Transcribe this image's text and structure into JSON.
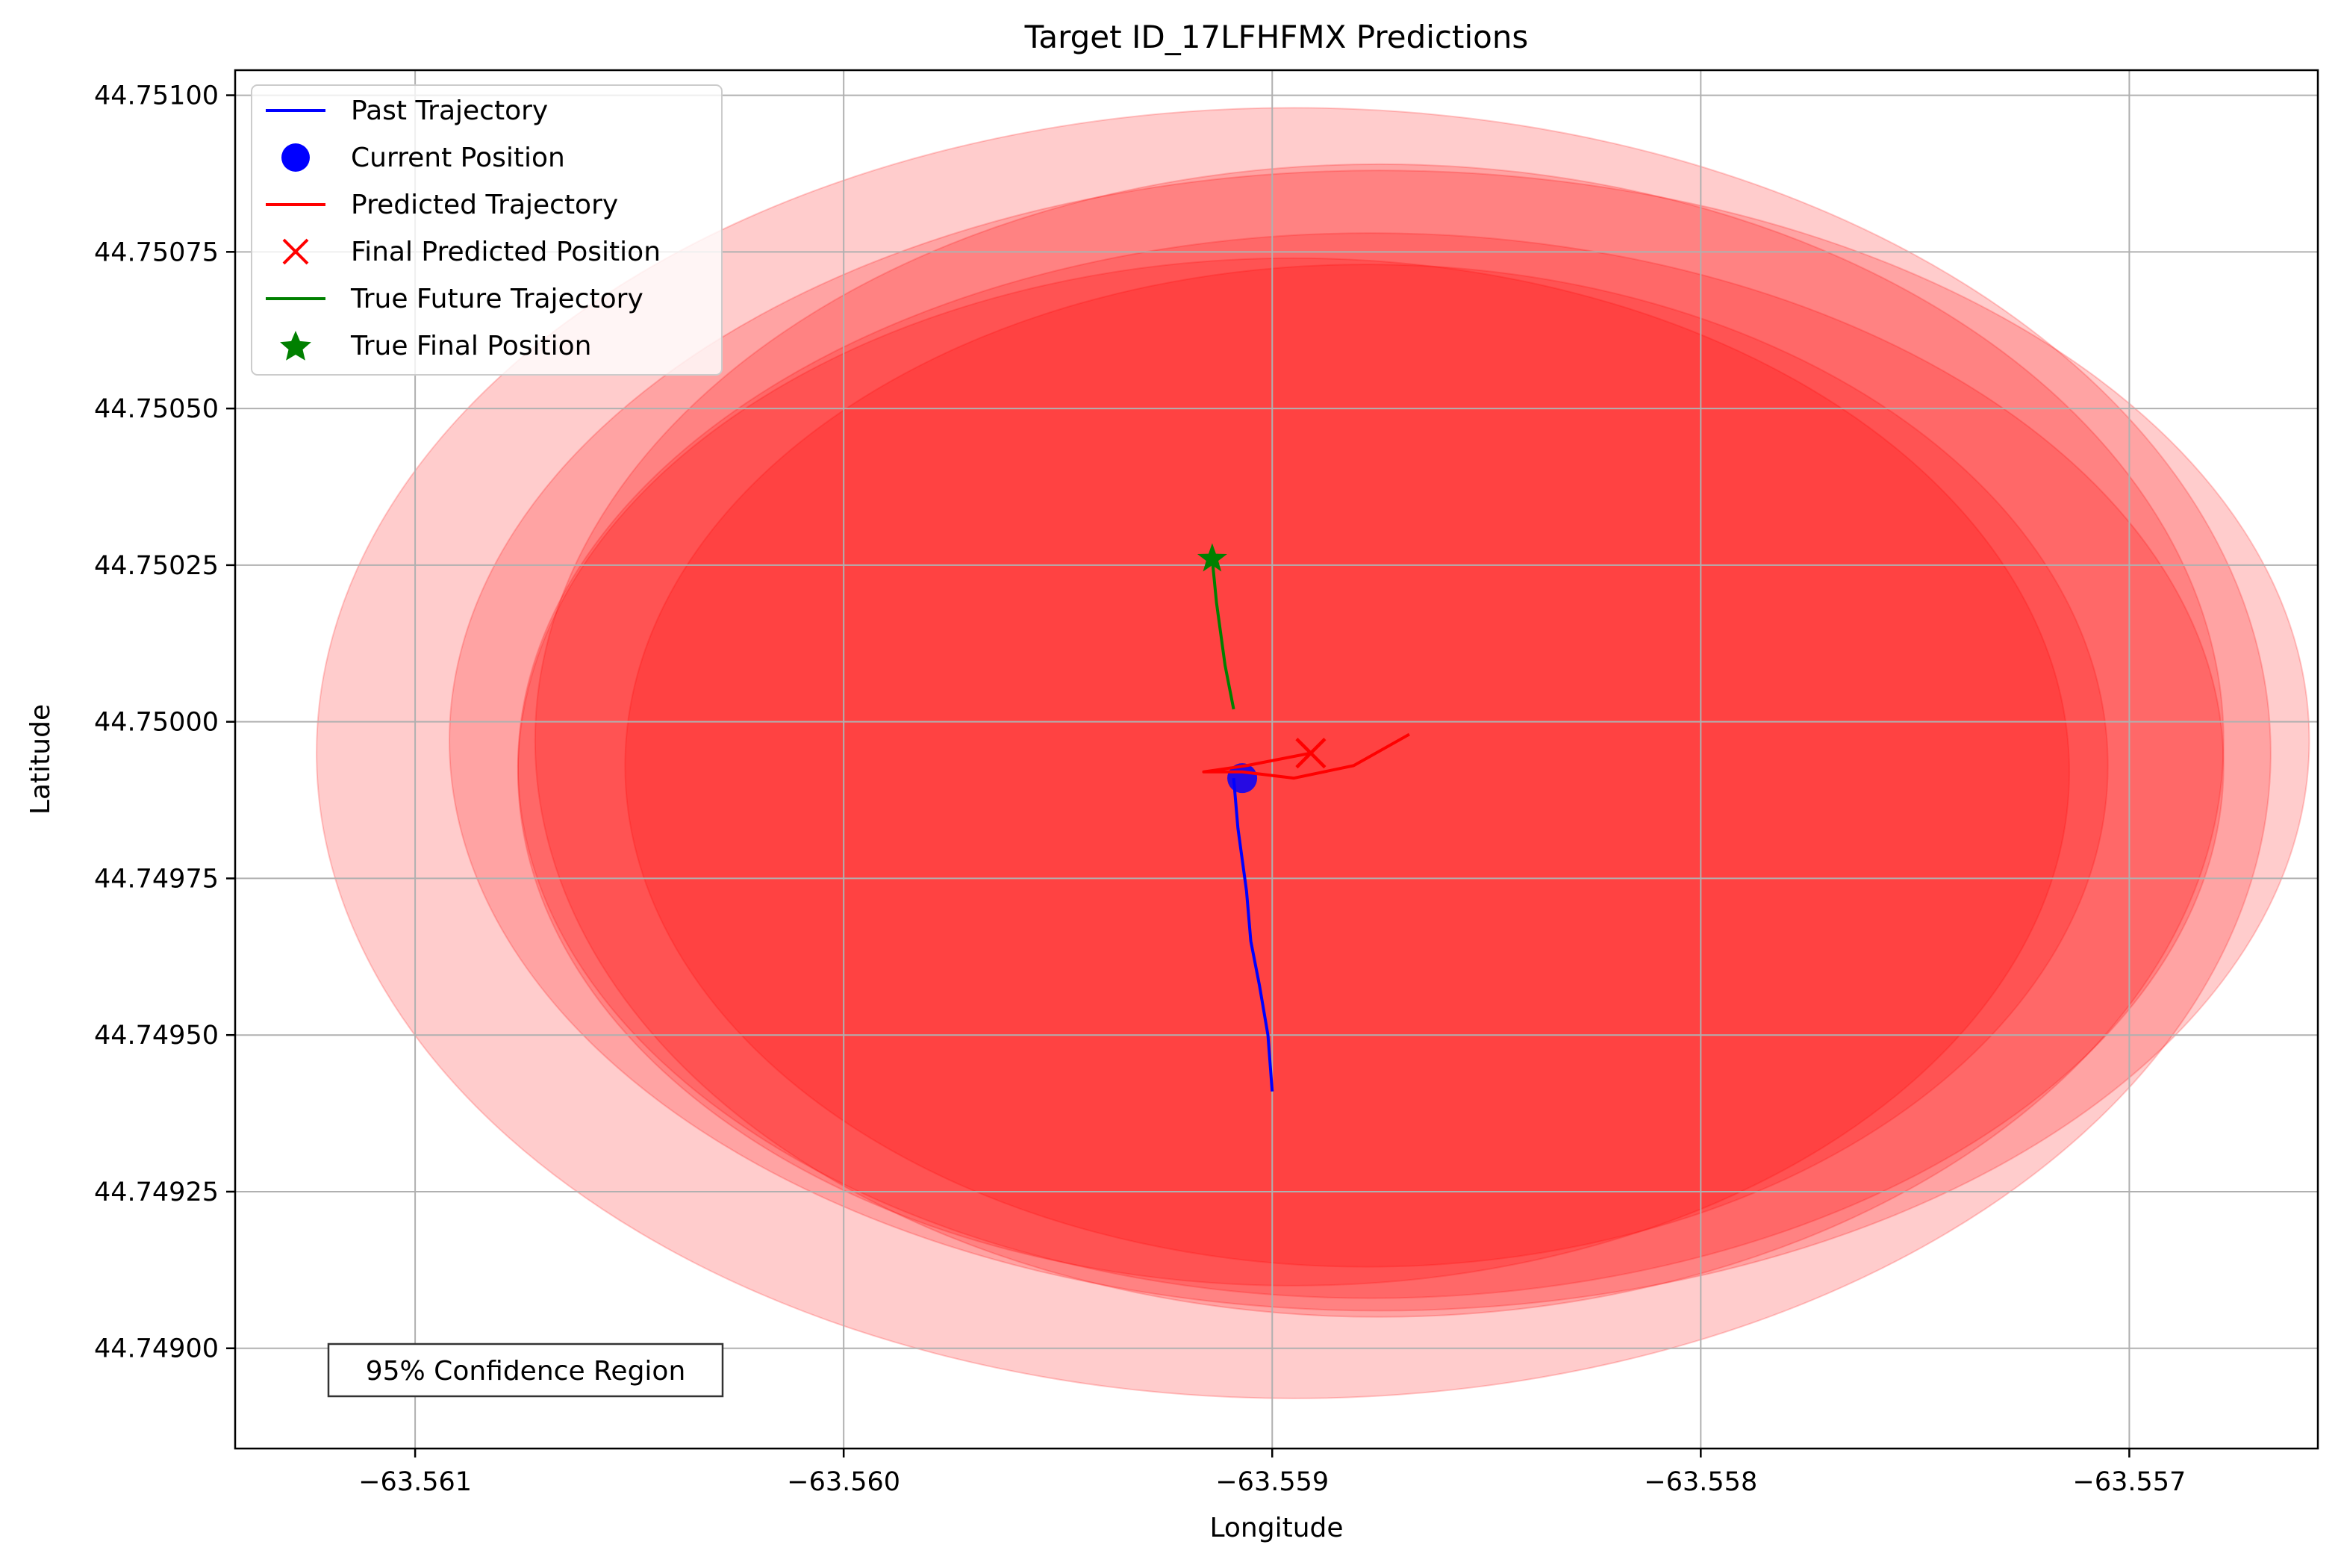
{
  "chart_data": {
    "type": "scatter",
    "title": "Target ID_17LFHFMX Predictions",
    "xlabel": "Longitude",
    "ylabel": "Latitude",
    "xlim": [
      -63.56142,
      -63.55656
    ],
    "ylim": [
      44.74884,
      44.75104
    ],
    "x_ticks": [
      -63.561,
      -63.56,
      -63.559,
      -63.558,
      -63.557
    ],
    "x_tick_labels": [
      "−63.561",
      "−63.560",
      "−63.559",
      "−63.558",
      "−63.557"
    ],
    "y_ticks": [
      44.749,
      44.74925,
      44.7495,
      44.74975,
      44.75,
      44.75025,
      44.7505,
      44.75075,
      44.751
    ],
    "y_tick_labels": [
      "44.74900",
      "44.74925",
      "44.74950",
      "44.74975",
      "44.75000",
      "44.75025",
      "44.75050",
      "44.75075",
      "44.75100"
    ],
    "grid": true,
    "legend_position": "top-left",
    "annotation": "95% Confidence Region",
    "colors": {
      "past": "#0000ff",
      "current": "#0000ff",
      "predicted": "#ff0000",
      "final_predicted": "#ff0000",
      "true_future": "#008000",
      "true_final": "#008000",
      "confidence": "#ff0000",
      "grid": "#b0b0b0"
    },
    "series": [
      {
        "name": "Past Trajectory",
        "kind": "line",
        "x": [
          -63.559,
          -63.55901,
          -63.55903,
          -63.55905,
          -63.55906,
          -63.55908,
          -63.55909
        ],
        "y": [
          44.74941,
          44.7495,
          44.74958,
          44.74965,
          44.74973,
          44.74983,
          44.74991
        ]
      },
      {
        "name": "Current Position",
        "kind": "point",
        "x": [
          -63.55907
        ],
        "y": [
          44.74991
        ]
      },
      {
        "name": "Predicted Trajectory",
        "kind": "line",
        "x": [
          -63.55868,
          -63.55881,
          -63.55895,
          -63.55907,
          -63.55916,
          -63.55906,
          -63.55891
        ],
        "y": [
          44.74998,
          44.74993,
          44.74991,
          44.74992,
          44.74992,
          44.74993,
          44.74995
        ]
      },
      {
        "name": "Final Predicted Position",
        "kind": "marker-x",
        "x": [
          -63.55891
        ],
        "y": [
          44.74995
        ]
      },
      {
        "name": "True Future Trajectory",
        "kind": "line",
        "x": [
          -63.55909,
          -63.55911,
          -63.55913,
          -63.55914
        ],
        "y": [
          44.75002,
          44.75009,
          44.75019,
          44.75026
        ]
      },
      {
        "name": "True Final Position",
        "kind": "marker-star",
        "x": [
          -63.55914
        ],
        "y": [
          44.75026
        ]
      }
    ],
    "confidence_regions": [
      {
        "cx": -63.55895,
        "cy": 44.74995,
        "rx": 0.00228,
        "ry": 0.00103,
        "alpha": 0.2
      },
      {
        "cx": -63.55877,
        "cy": 44.74993,
        "rx": 0.00199,
        "ry": 0.00085,
        "alpha": 0.2
      },
      {
        "cx": -63.55875,
        "cy": 44.74997,
        "rx": 0.00217,
        "ry": 0.00091,
        "alpha": 0.2
      },
      {
        "cx": -63.55875,
        "cy": 44.74997,
        "rx": 0.00197,
        "ry": 0.00092,
        "alpha": 0.2
      },
      {
        "cx": -63.55895,
        "cy": 44.74992,
        "rx": 0.00181,
        "ry": 0.00082,
        "alpha": 0.2
      },
      {
        "cx": -63.55878,
        "cy": 44.74993,
        "rx": 0.00173,
        "ry": 0.0008,
        "alpha": 0.2
      }
    ]
  }
}
